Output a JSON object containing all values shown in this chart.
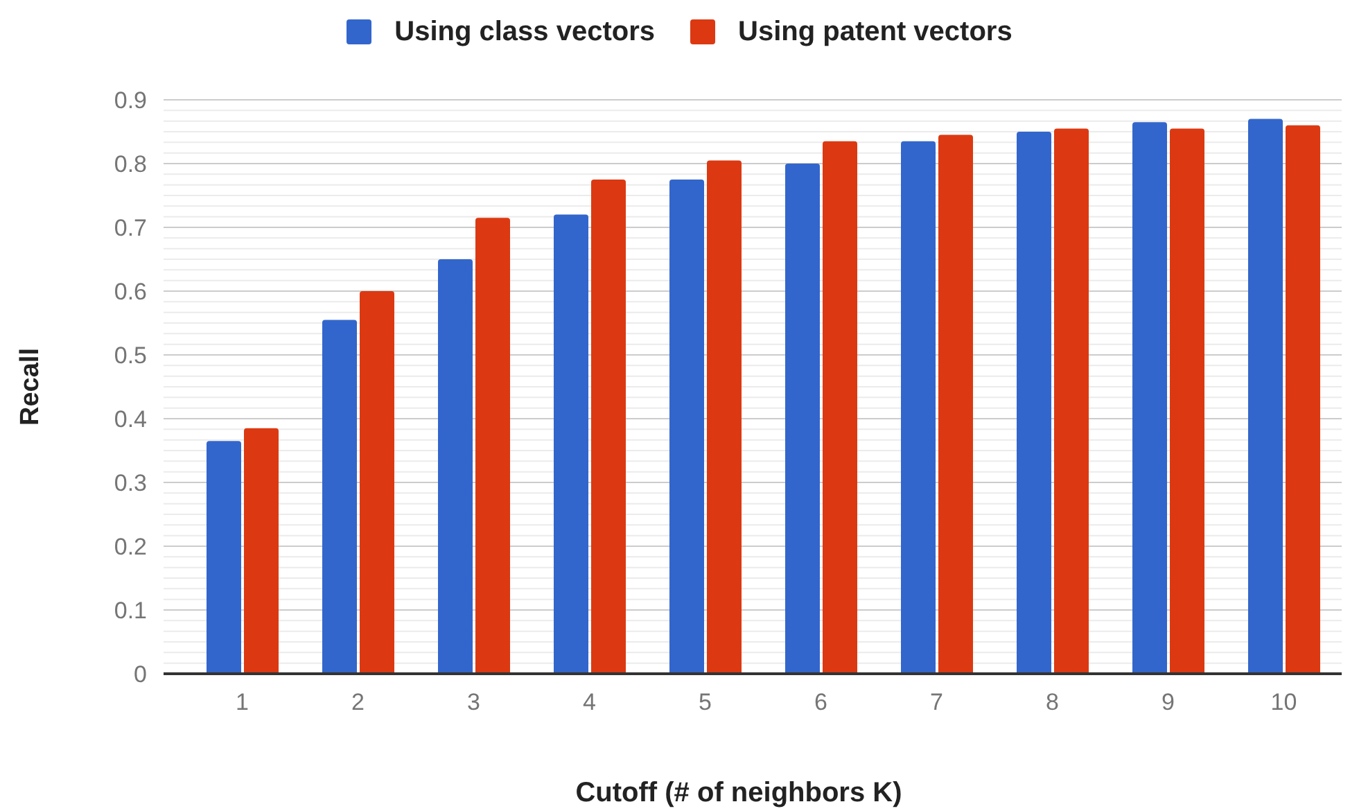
{
  "chart_data": {
    "type": "bar",
    "xlabel": "Cutoff (# of neighbors K)",
    "ylabel": "Recall",
    "categories": [
      "1",
      "2",
      "3",
      "4",
      "5",
      "6",
      "7",
      "8",
      "9",
      "10"
    ],
    "series": [
      {
        "name": "Using class vectors",
        "color": "#3366cc",
        "values": [
          0.365,
          0.555,
          0.65,
          0.72,
          0.775,
          0.8,
          0.835,
          0.85,
          0.865,
          0.87
        ]
      },
      {
        "name": "Using patent vectors",
        "color": "#dc3912",
        "values": [
          0.385,
          0.6,
          0.715,
          0.775,
          0.805,
          0.835,
          0.845,
          0.855,
          0.855,
          0.86
        ]
      }
    ],
    "ylim": [
      0,
      0.9
    ],
    "yticks": [
      0,
      {
        "value": 0.0167,
        "label": null
      },
      {
        "value": 0.0333,
        "label": null
      },
      {
        "value": 0.05,
        "label": null
      },
      {
        "value": 0.0667,
        "label": null
      },
      {
        "value": 0.0833,
        "label": null
      },
      0.1,
      {
        "value": 0.1167,
        "label": null
      },
      {
        "value": 0.1333,
        "label": null
      },
      {
        "value": 0.15,
        "label": null
      },
      {
        "value": 0.1667,
        "label": null
      },
      {
        "value": 0.1833,
        "label": null
      },
      0.2,
      {
        "value": 0.2167,
        "label": null
      },
      {
        "value": 0.2333,
        "label": null
      },
      {
        "value": 0.25,
        "label": null
      },
      {
        "value": 0.2667,
        "label": null
      },
      {
        "value": 0.2833,
        "label": null
      },
      0.3,
      {
        "value": 0.3167,
        "label": null
      },
      {
        "value": 0.3333,
        "label": null
      },
      {
        "value": 0.35,
        "label": null
      },
      {
        "value": 0.3667,
        "label": null
      },
      {
        "value": 0.3833,
        "label": null
      },
      0.4,
      {
        "value": 0.4167,
        "label": null
      },
      {
        "value": 0.4333,
        "label": null
      },
      {
        "value": 0.45,
        "label": null
      },
      {
        "value": 0.4667,
        "label": null
      },
      {
        "value": 0.4833,
        "label": null
      },
      0.5,
      {
        "value": 0.5167,
        "label": null
      },
      {
        "value": 0.5333,
        "label": null
      },
      {
        "value": 0.55,
        "label": null
      },
      {
        "value": 0.5667,
        "label": null
      },
      {
        "value": 0.5833,
        "label": null
      },
      0.6,
      {
        "value": 0.6167,
        "label": null
      },
      {
        "value": 0.6333,
        "label": null
      },
      {
        "value": 0.65,
        "label": null
      },
      {
        "value": 0.6667,
        "label": null
      },
      {
        "value": 0.6833,
        "label": null
      },
      0.7,
      {
        "value": 0.7167,
        "label": null
      },
      {
        "value": 0.7333,
        "label": null
      },
      {
        "value": 0.75,
        "label": null
      },
      {
        "value": 0.7667,
        "label": null
      },
      {
        "value": 0.7833,
        "label": null
      },
      0.8,
      {
        "value": 0.8167,
        "label": null
      },
      {
        "value": 0.8333,
        "label": null
      },
      {
        "value": 0.85,
        "label": null
      },
      {
        "value": 0.8667,
        "label": null
      },
      {
        "value": 0.8833,
        "label": null
      },
      0.9
    ],
    "grid": "y",
    "legend": "top"
  }
}
